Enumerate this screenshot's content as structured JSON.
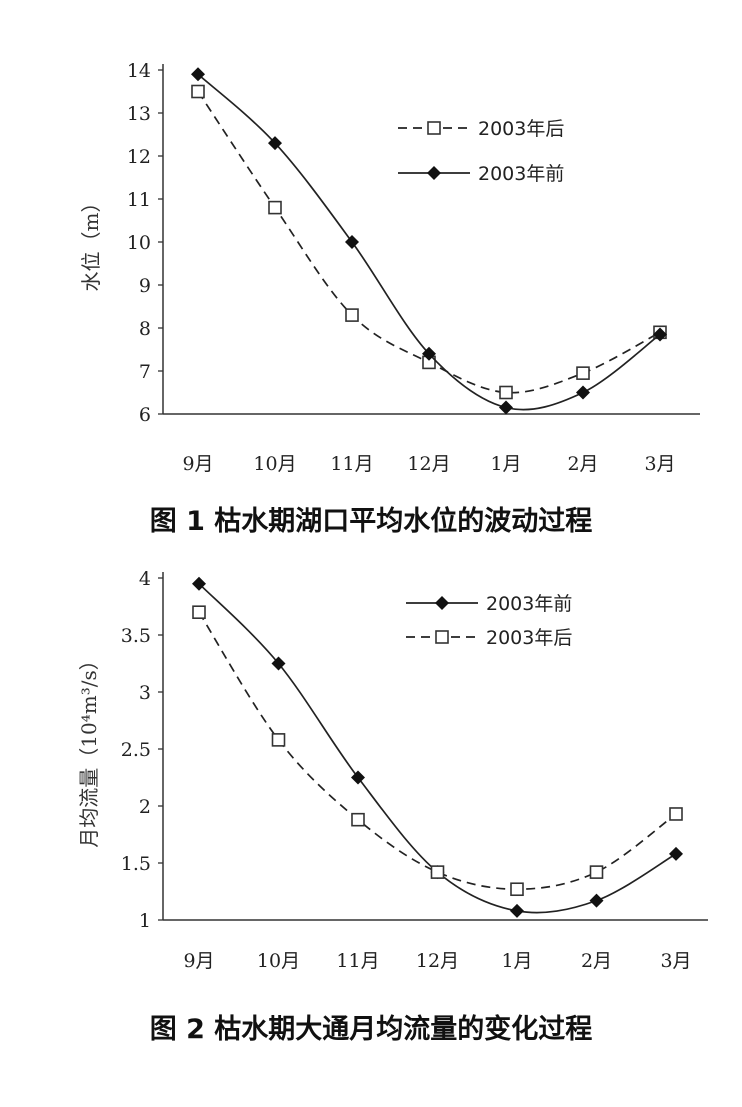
{
  "chart_data": [
    {
      "type": "line",
      "caption": "图 1  枯水期湖口平均水位的波动过程",
      "ylabel": "水位（m）",
      "categories": [
        "9月",
        "10月",
        "11月",
        "12月",
        "1月",
        "2月",
        "3月"
      ],
      "ylim": [
        6,
        14
      ],
      "yticks": [
        6,
        7,
        8,
        9,
        10,
        11,
        12,
        13,
        14
      ],
      "legend_position": "top-right",
      "series": [
        {
          "name": "2003年后",
          "style": "dashed",
          "marker": "open-square",
          "values": [
            13.5,
            10.8,
            8.3,
            7.2,
            6.5,
            6.95,
            7.9
          ]
        },
        {
          "name": "2003年前",
          "style": "solid",
          "marker": "filled-diamond",
          "values": [
            13.9,
            12.3,
            10.0,
            7.4,
            6.15,
            6.5,
            7.85
          ]
        }
      ]
    },
    {
      "type": "line",
      "caption": "图 2  枯水期大通月均流量的变化过程",
      "ylabel": "月均流量（10⁴m³/s）",
      "categories": [
        "9月",
        "10月",
        "11月",
        "12月",
        "1月",
        "2月",
        "3月"
      ],
      "ylim": [
        1,
        4
      ],
      "yticks": [
        "1",
        "1.5",
        "2",
        "2.5",
        "3",
        "3.5",
        "4"
      ],
      "legend_position": "top-right",
      "series": [
        {
          "name": "2003年前",
          "style": "solid",
          "marker": "filled-diamond",
          "values": [
            3.95,
            3.25,
            2.25,
            1.42,
            1.08,
            1.17,
            1.58
          ]
        },
        {
          "name": "2003年后",
          "style": "dashed",
          "marker": "open-square",
          "values": [
            3.7,
            2.58,
            1.88,
            1.42,
            1.27,
            1.42,
            1.93
          ]
        }
      ]
    }
  ]
}
